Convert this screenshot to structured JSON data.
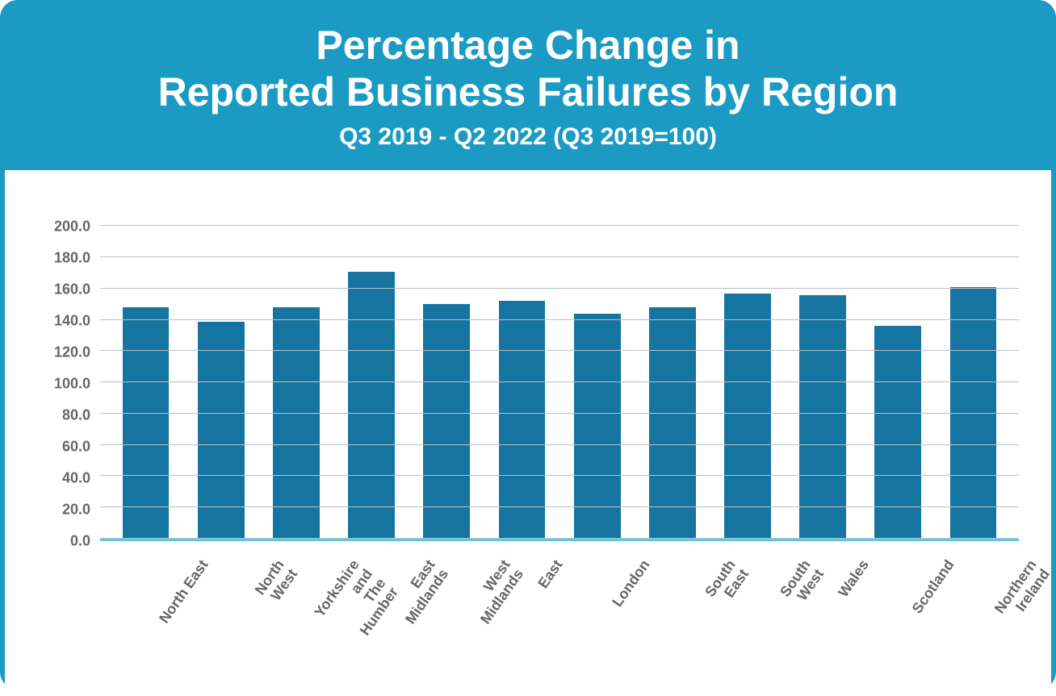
{
  "header": {
    "title_line1": "Percentage Change in",
    "title_line2": "Reported Business Failures by Region",
    "subtitle": "Q3 2019 -  Q2 2022  (Q3 2019=100)",
    "title_fontsize": 50,
    "subtitle_fontsize": 30,
    "title_color": "#ffffff",
    "bg_color": "#1b9bc3"
  },
  "chart": {
    "type": "bar",
    "categories": [
      "North East",
      "North West",
      "Yorkshire and\nThe Humber",
      "East Midlands",
      "West Midlands",
      "East",
      "London",
      "South East",
      "South West",
      "Wales",
      "Scotland",
      "Northern Ireland"
    ],
    "values": [
      148,
      139,
      148,
      171,
      150,
      152,
      144,
      148,
      157,
      156,
      136,
      161
    ],
    "bar_color": "#1574a0",
    "ylim_min": 0,
    "ylim_max": 210,
    "ytick_step": 20,
    "ytick_labels": [
      "0.0",
      "20.0",
      "40.0",
      "60.0",
      "80.0",
      "100.0",
      "120.0",
      "140.0",
      "160.0",
      "180.0",
      "200.0"
    ],
    "grid_color": "#b7c2c7",
    "baseline_color": "#5bc7e6",
    "axis_label_color": "#666666",
    "axis_label_fontsize": 18,
    "x_label_fontsize": 18,
    "x_label_rotation": -55,
    "bar_width_ratio": 0.62,
    "plot_bg": "#ffffff"
  },
  "container": {
    "bg_color": "#1b9bc3",
    "border_radius": 22
  }
}
